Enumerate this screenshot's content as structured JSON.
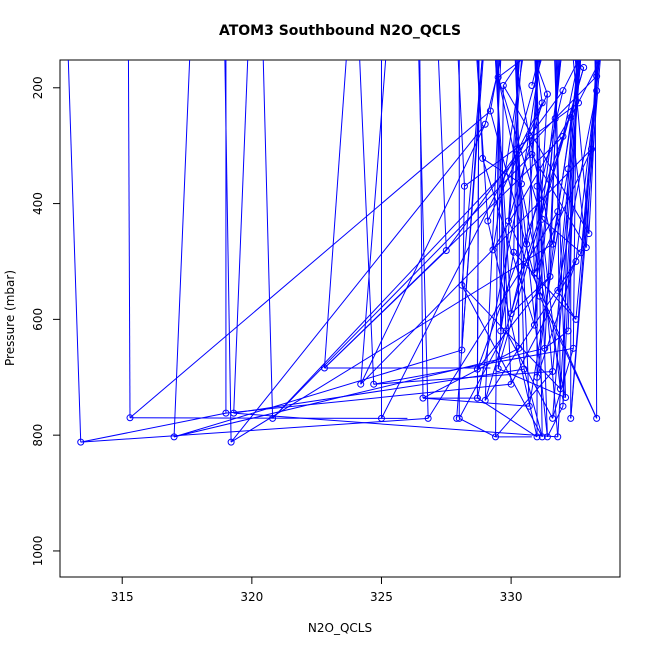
{
  "chart_data": {
    "type": "scatter",
    "title": "ATOM3 Southbound N2O_QCLS",
    "xlabel": "N2O_QCLS",
    "ylabel": "Pressure (mbar)",
    "xlim": [
      312.6,
      334.2
    ],
    "ylim": [
      1045,
      152
    ],
    "y_reversed": true,
    "x_ticks": [
      315,
      320,
      325,
      330
    ],
    "y_ticks": [
      200,
      400,
      600,
      800,
      1000
    ],
    "series_color": "#0000ff",
    "marker": "open-circle",
    "connected": true,
    "points": [
      [
        313.4,
        812
      ],
      [
        315.3,
        770
      ],
      [
        317.0,
        803
      ],
      [
        319.0,
        762
      ],
      [
        319.3,
        762
      ],
      [
        319.2,
        812
      ],
      [
        320.8,
        771
      ],
      [
        322.8,
        684
      ],
      [
        324.2,
        712
      ],
      [
        324.7,
        712
      ],
      [
        325.0,
        771
      ],
      [
        326.6,
        736
      ],
      [
        326.8,
        771
      ],
      [
        327.5,
        481
      ],
      [
        327.9,
        771
      ],
      [
        328.0,
        771
      ],
      [
        328.1,
        541
      ],
      [
        328.1,
        653
      ],
      [
        328.7,
        736
      ],
      [
        328.7,
        686
      ],
      [
        329.0,
        740
      ],
      [
        329.4,
        803
      ],
      [
        329.6,
        620
      ],
      [
        329.5,
        685
      ],
      [
        330.0,
        712
      ],
      [
        330.5,
        686
      ],
      [
        330.7,
        750
      ],
      [
        331.0,
        803
      ],
      [
        331.2,
        803
      ],
      [
        331.4,
        803
      ],
      [
        331.6,
        771
      ],
      [
        331.8,
        803
      ],
      [
        332.0,
        750
      ],
      [
        332.3,
        771
      ],
      [
        333.3,
        771
      ],
      [
        328.2,
        370
      ],
      [
        328.9,
        322
      ],
      [
        329.2,
        240
      ],
      [
        329.0,
        263
      ],
      [
        329.8,
        620
      ],
      [
        330.1,
        484
      ],
      [
        330.2,
        306
      ],
      [
        330.4,
        366
      ],
      [
        330.6,
        470
      ],
      [
        330.7,
        284
      ],
      [
        330.8,
        315
      ],
      [
        331.0,
        370
      ],
      [
        331.2,
        427
      ],
      [
        331.4,
        211
      ],
      [
        331.5,
        526
      ],
      [
        331.6,
        470
      ],
      [
        331.8,
        414
      ],
      [
        332.0,
        284
      ],
      [
        332.2,
        340
      ],
      [
        332.3,
        251
      ],
      [
        332.5,
        600
      ],
      [
        332.7,
        485
      ],
      [
        332.9,
        476
      ],
      [
        333.0,
        452
      ],
      [
        333.1,
        306
      ],
      [
        333.3,
        180
      ],
      [
        333.3,
        205
      ],
      [
        331.3,
        650
      ],
      [
        331.6,
        690
      ],
      [
        331.9,
        720
      ],
      [
        332.1,
        735
      ],
      [
        332.4,
        650
      ],
      [
        331.1,
        560
      ],
      [
        330.9,
        520
      ],
      [
        331.0,
        700
      ],
      [
        329.7,
        196
      ],
      [
        329.5,
        182
      ],
      [
        330.8,
        196
      ],
      [
        331.2,
        226
      ],
      [
        332.6,
        226
      ],
      [
        331.7,
        253
      ],
      [
        332.0,
        205
      ],
      [
        332.8,
        165
      ],
      [
        329.1,
        430
      ],
      [
        329.9,
        430
      ],
      [
        330.3,
        650
      ],
      [
        330.9,
        610
      ],
      [
        331.8,
        550
      ],
      [
        332.2,
        620
      ],
      [
        332.5,
        500
      ],
      [
        330.0,
        590
      ],
      [
        329.3,
        480
      ]
    ],
    "extra_segments": [
      [
        [
          326.6,
          736
        ],
        [
          328.8,
          736
        ]
      ],
      [
        [
          322.8,
          684
        ],
        [
          329.2,
          684
        ]
      ],
      [
        [
          325.0,
          771
        ],
        [
          326.0,
          771
        ]
      ],
      [
        [
          329.4,
          803
        ],
        [
          330.8,
          803
        ]
      ]
    ]
  }
}
